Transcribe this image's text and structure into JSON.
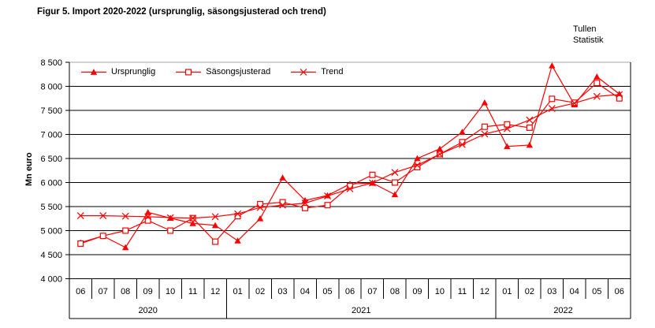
{
  "title": "Figur 5. Import 2020-2022 (ursprunglig, säsongsjusterad och trend)",
  "credit": {
    "line1": "Tullen",
    "line2": "Statistik"
  },
  "y_axis": {
    "label": "Mn euro"
  },
  "colors": {
    "series": "#ff0000",
    "gridline": "#000000",
    "top_border": "#a6a6a6"
  },
  "chart_data": {
    "type": "line",
    "title": "Figur 5. Import 2020-2022 (ursprunglig, säsongsjusterad och trend)",
    "ylabel": "Mn euro",
    "ylim": [
      4000,
      8500
    ],
    "ytick_step": 500,
    "ytick_labels": [
      "8 500",
      "8 000",
      "7 500",
      "7 000",
      "6 500",
      "6 000",
      "5 500",
      "5 000",
      "4 500",
      "4 000"
    ],
    "grid": "horizontal",
    "legend_position": "top-inside",
    "x_groups": [
      {
        "year": "2020",
        "months": [
          "06",
          "07",
          "08",
          "09",
          "10",
          "11",
          "12"
        ]
      },
      {
        "year": "2021",
        "months": [
          "01",
          "02",
          "03",
          "04",
          "05",
          "06",
          "07",
          "08",
          "09",
          "10",
          "11",
          "12"
        ]
      },
      {
        "year": "2022",
        "months": [
          "01",
          "02",
          "03",
          "04",
          "05",
          "06"
        ]
      }
    ],
    "series": [
      {
        "name": "Ursprunglig",
        "marker": "triangle",
        "color": "#ff0000",
        "values": [
          4750,
          4890,
          4650,
          5380,
          5260,
          5150,
          5110,
          4790,
          5250,
          6100,
          5630,
          5730,
          5970,
          5990,
          5750,
          6500,
          6700,
          7050,
          7660,
          6750,
          6780,
          8430,
          7620,
          8200,
          7840
        ]
      },
      {
        "name": "Säsongsjusterad",
        "marker": "square",
        "color": "#ff0000",
        "values": [
          4730,
          4890,
          5000,
          5210,
          5000,
          5260,
          4770,
          5300,
          5550,
          5590,
          5470,
          5530,
          5930,
          6160,
          6000,
          6320,
          6590,
          6840,
          7160,
          7210,
          7140,
          7740,
          7660,
          8070,
          7750
        ]
      },
      {
        "name": "Trend",
        "marker": "x",
        "color": "#ff0000",
        "values": [
          5310,
          5310,
          5300,
          5290,
          5270,
          5260,
          5290,
          5350,
          5480,
          5530,
          5570,
          5720,
          5870,
          5990,
          6210,
          6360,
          6590,
          6790,
          7010,
          7120,
          7300,
          7540,
          7650,
          7790,
          7830
        ]
      }
    ]
  }
}
